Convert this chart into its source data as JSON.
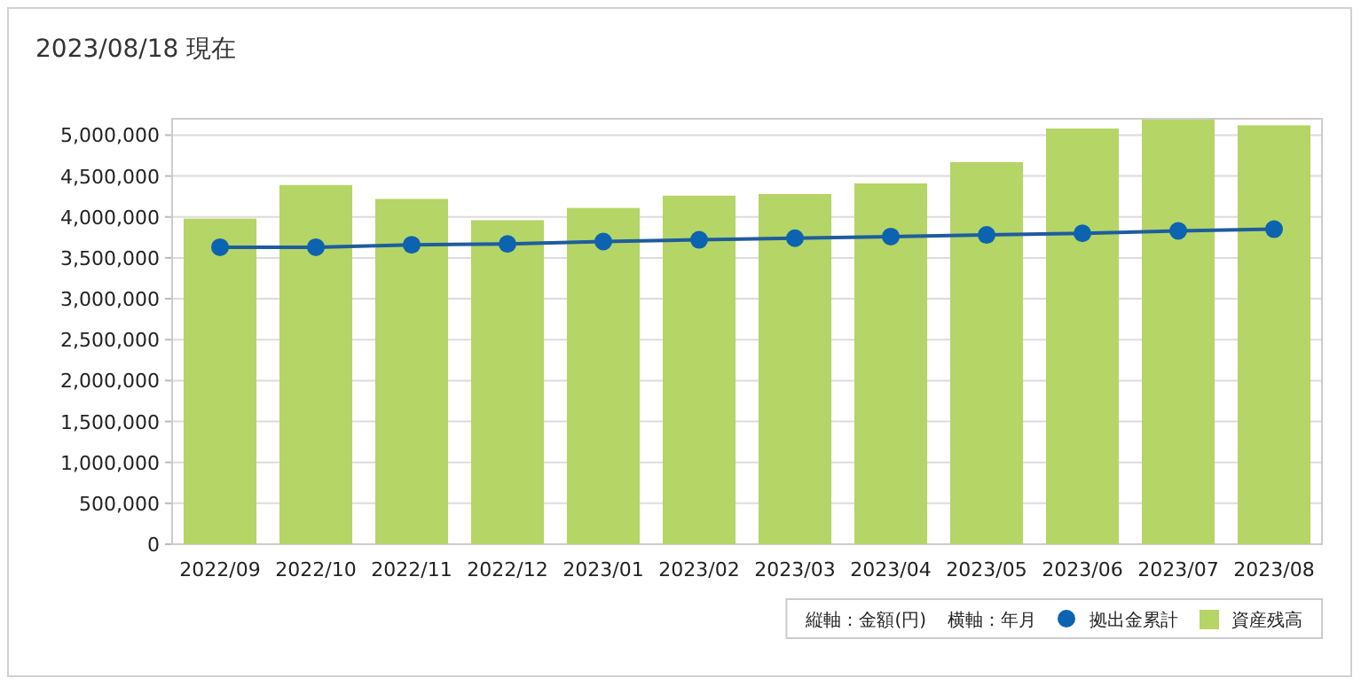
{
  "chart_data": {
    "type": "bar",
    "title": "2023/08/18 現在",
    "annotations": [
      "縦軸：金額(円)",
      "横軸：年月"
    ],
    "categories": [
      "2022/09",
      "2022/10",
      "2022/11",
      "2022/12",
      "2023/01",
      "2023/02",
      "2023/03",
      "2023/04",
      "2023/05",
      "2023/06",
      "2023/07",
      "2023/08"
    ],
    "series": [
      {
        "name": "資産残高",
        "color": "#b5d566",
        "values": [
          3980000,
          4390000,
          4220000,
          3960000,
          4110000,
          4260000,
          4280000,
          4410000,
          4670000,
          5080000,
          5190000,
          5120000
        ]
      },
      {
        "name": "拠出金累計",
        "type": "line",
        "color": "#0c63b0",
        "values": [
          3630000,
          3630000,
          3660000,
          3670000,
          3700000,
          3720000,
          3740000,
          3760000,
          3780000,
          3800000,
          3830000,
          3850000
        ]
      }
    ],
    "ylim": [
      0,
      5200000
    ],
    "yticks": [
      {
        "value": 0,
        "label": "0"
      },
      {
        "value": 500000,
        "label": "500,000"
      },
      {
        "value": 1000000,
        "label": "1,000,000"
      },
      {
        "value": 1500000,
        "label": "1,500,000"
      },
      {
        "value": 2000000,
        "label": "2,000,000"
      },
      {
        "value": 2500000,
        "label": "2,500,000"
      },
      {
        "value": 3000000,
        "label": "3,000,000"
      },
      {
        "value": 3500000,
        "label": "3,500,000"
      },
      {
        "value": 4000000,
        "label": "4,000,000"
      },
      {
        "value": 4500000,
        "label": "4,500,000"
      },
      {
        "value": 5000000,
        "label": "5,000,000"
      }
    ],
    "grid": "y",
    "legend": "bottom right",
    "marker": "circle"
  }
}
